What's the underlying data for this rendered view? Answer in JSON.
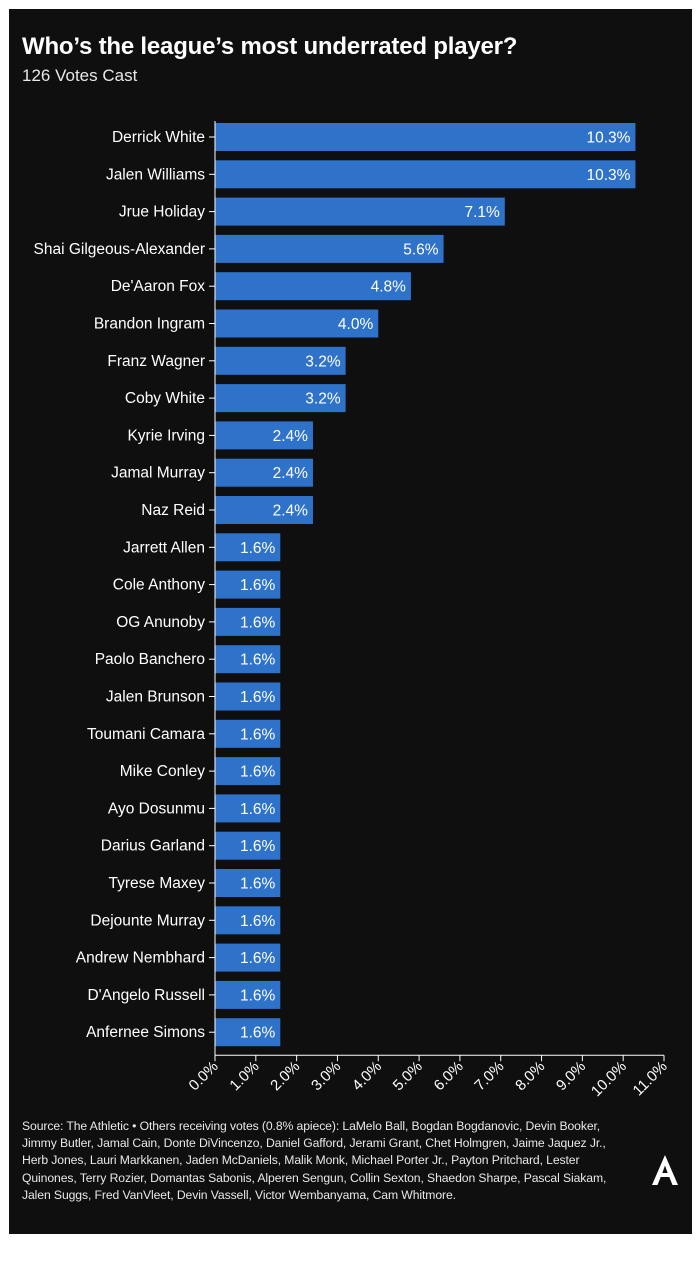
{
  "header": {
    "title": "Who’s the league’s most underrated player?",
    "subtitle": "126 Votes Cast"
  },
  "footer": {
    "source": "Source: The Athletic • Others receiving votes (0.8% apiece): LaMelo Ball, Bogdan Bogdanovic, Devin Booker, Jimmy Butler, Jamal Cain, Donte DiVincenzo, Daniel Gafford, Jerami Grant, Chet Holmgren, Jaime Jaquez Jr., Herb Jones, Lauri Markkanen, Jaden McDaniels, Malik Monk, Michael Porter Jr., Payton Pritchard, Lester Quinones, Terry Rozier, Domantas Sabonis, Alperen Sengun, Collin Sexton, Shaedon Sharpe, Pascal Siakam, Jalen Suggs, Fred VanVleet, Devin Vassell, Victor Wembanyama, Cam Whitmore.",
    "logo_letter": "A"
  },
  "colors": {
    "background": "#0f0f0f",
    "bar": "#2e72c9",
    "text": "#ffffff",
    "axis": "#ffffff"
  },
  "chart_data": {
    "type": "bar",
    "orientation": "horizontal",
    "categories": [
      "Derrick White",
      "Jalen Williams",
      "Jrue Holiday",
      "Shai Gilgeous-Alexander",
      "De'Aaron Fox",
      "Brandon Ingram",
      "Franz Wagner",
      "Coby White",
      "Kyrie Irving",
      "Jamal Murray",
      "Naz Reid",
      "Jarrett Allen",
      "Cole Anthony",
      "OG Anunoby",
      "Paolo Banchero",
      "Jalen Brunson",
      "Toumani Camara",
      "Mike Conley",
      "Ayo Dosunmu",
      "Darius Garland",
      "Tyrese Maxey",
      "Dejounte Murray",
      "Andrew Nembhard",
      "D'Angelo Russell",
      "Anfernee Simons"
    ],
    "values": [
      10.3,
      10.3,
      7.1,
      5.6,
      4.8,
      4.0,
      3.2,
      3.2,
      2.4,
      2.4,
      2.4,
      1.6,
      1.6,
      1.6,
      1.6,
      1.6,
      1.6,
      1.6,
      1.6,
      1.6,
      1.6,
      1.6,
      1.6,
      1.6,
      1.6
    ],
    "value_labels": [
      "10.3%",
      "10.3%",
      "7.1%",
      "5.6%",
      "4.8%",
      "4.0%",
      "3.2%",
      "3.2%",
      "2.4%",
      "2.4%",
      "2.4%",
      "1.6%",
      "1.6%",
      "1.6%",
      "1.6%",
      "1.6%",
      "1.6%",
      "1.6%",
      "1.6%",
      "1.6%",
      "1.6%",
      "1.6%",
      "1.6%",
      "1.6%",
      "1.6%"
    ],
    "x_ticks": [
      "0.0%",
      "1.0%",
      "2.0%",
      "3.0%",
      "4.0%",
      "5.0%",
      "6.0%",
      "7.0%",
      "8.0%",
      "9.0%",
      "10.0%",
      "11.0%"
    ],
    "xlim": [
      0,
      11
    ],
    "xlabel": "",
    "ylabel": "",
    "grid": false,
    "legend": "none"
  }
}
